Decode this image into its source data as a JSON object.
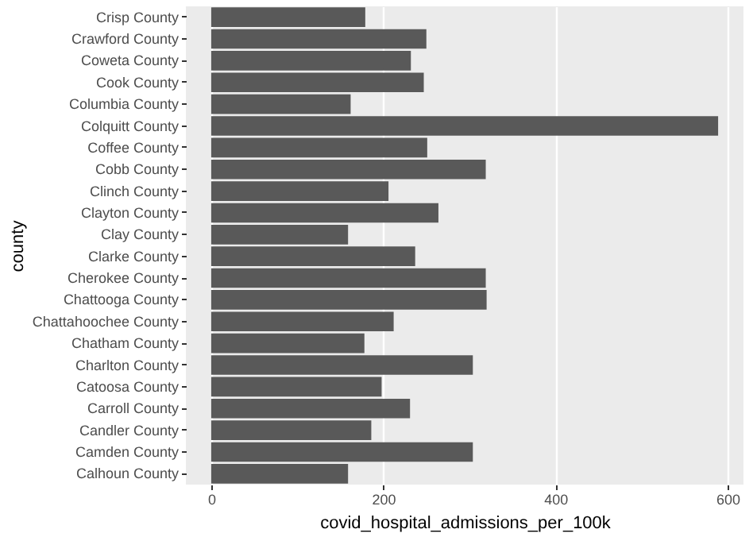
{
  "chart_data": {
    "type": "bar",
    "orientation": "horizontal",
    "xlabel": "covid_hospital_admissions_per_100k",
    "ylabel": "county",
    "categories": [
      "Crisp County",
      "Crawford County",
      "Coweta County",
      "Cook County",
      "Columbia County",
      "Colquitt County",
      "Coffee County",
      "Cobb County",
      "Clinch County",
      "Clayton County",
      "Clay County",
      "Clarke County",
      "Cherokee County",
      "Chattooga County",
      "Chattahoochee County",
      "Chatham County",
      "Charlton County",
      "Catoosa County",
      "Carroll County",
      "Candler County",
      "Camden County",
      "Calhoun County"
    ],
    "values": [
      179,
      250,
      232,
      247,
      162,
      589,
      251,
      319,
      206,
      264,
      159,
      237,
      319,
      320,
      212,
      178,
      304,
      198,
      231,
      186,
      304,
      159
    ],
    "color": "#595959",
    "xlim": [
      -29.45,
      618.45
    ],
    "xticks": [
      0,
      200,
      400,
      600
    ],
    "grid": true
  }
}
